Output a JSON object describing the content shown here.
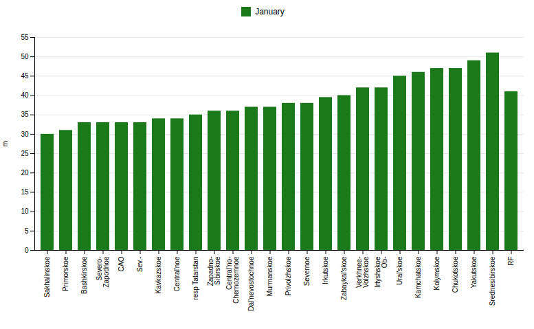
{
  "chart_data": {
    "type": "bar",
    "categories": [
      "Sakhalinskoe",
      "Primorskoe",
      "Bashkirskoe",
      "Severo-\nZapodnoe",
      "CAO",
      "Sev.-",
      "Kavkazskoe",
      "Central'noe",
      "resp Tatarstan",
      "Zapadno-\nSibirskoe",
      "Central'no-\nChernozemnoe",
      "Dal'nevostochnoe",
      "Murmanskoe",
      "Privolzhskoe",
      "Severnoe",
      "Irkutskoe",
      "Zabaykal'skoe",
      "Verkhnee-\nVolzhskoe",
      "Irtyshskoe\nOb-",
      "Ural'skoe",
      "Kamchatskoe",
      "Kolymskoe",
      "Chukotskoe",
      "Yakutskoe",
      "Srednesibirskoe",
      "RF"
    ],
    "series": [
      {
        "name": "January",
        "color": "#1a7a1a",
        "values": [
          30.0,
          31.0,
          33.0,
          33.0,
          33.0,
          33.0,
          34.0,
          34.0,
          35.0,
          36.0,
          36.0,
          37.0,
          37.0,
          38.0,
          38.0,
          39.5,
          40.0,
          42.0,
          42.0,
          45.0,
          46.0,
          47.0,
          47.0,
          49.0,
          51.0,
          41.0
        ]
      }
    ],
    "ylabel": "m",
    "ylim": [
      0,
      55
    ],
    "yticks": [
      0,
      5,
      10,
      15,
      20,
      25,
      30,
      35,
      40,
      45,
      50,
      55
    ],
    "grid": true,
    "legend": "top"
  }
}
